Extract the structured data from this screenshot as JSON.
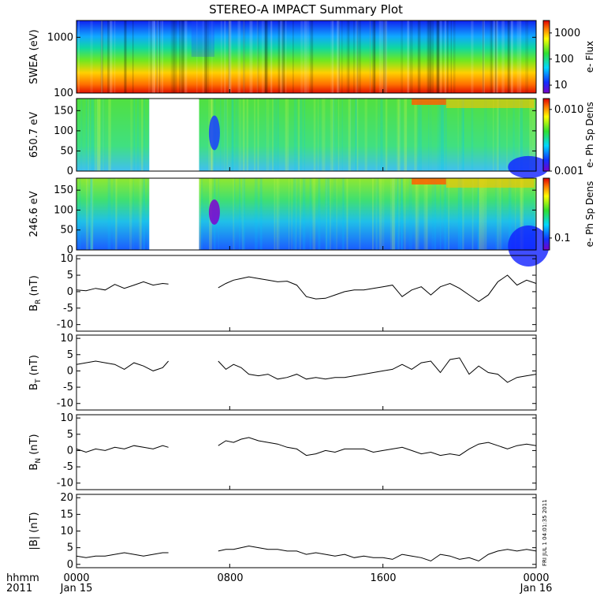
{
  "title": "STEREO-A IMPACT Summary Plot",
  "x_axis": {
    "ticks": [
      "0000",
      "0800",
      "1600",
      "0000"
    ],
    "date_labels": [
      "Jan 15",
      "Jan 16"
    ],
    "corner_top": "hhmm",
    "corner_bottom": "2011"
  },
  "side_note": "FRI JUL 1 04:01:35 2011",
  "colors": {
    "trace": "#000000",
    "gap": "#ffffff",
    "spectrogram_scale": [
      "#7a00c8",
      "#1030ff",
      "#00d8ff",
      "#30e030",
      "#ffff00",
      "#ff8000",
      "#e00000"
    ]
  },
  "chart_data": [
    {
      "id": "swea",
      "type": "heatmap",
      "ylabel": "SWEA (eV)",
      "yscale": "log",
      "ylim": [
        100,
        2000
      ],
      "yticks": [
        "100",
        "1000"
      ],
      "colorbar_label": "e- Flux",
      "colorbar_ticks": [
        "10",
        "100",
        "1000"
      ],
      "colorbar_scale": "log",
      "colorbar_range": [
        5,
        3000
      ],
      "data_gap_hours": []
    },
    {
      "id": "pitch650",
      "type": "heatmap",
      "ylabel": "650.7 eV",
      "ylim": [
        0,
        180
      ],
      "yticks": [
        "0",
        "50",
        "100",
        "150"
      ],
      "colorbar_label": "e- Ph Sp Dens",
      "colorbar_ticks": [
        "0.001",
        "0.010"
      ],
      "colorbar_scale": "log",
      "colorbar_range": [
        0.001,
        0.015
      ],
      "data_gap_hours": [
        3.8,
        6.4
      ]
    },
    {
      "id": "pitch246",
      "type": "heatmap",
      "ylabel": "246.6 eV",
      "ylim": [
        0,
        180
      ],
      "yticks": [
        "0",
        "50",
        "100",
        "150"
      ],
      "colorbar_label": "e- Ph Sp Dens",
      "colorbar_ticks": [
        "0.1"
      ],
      "colorbar_scale": "log",
      "colorbar_range": [
        0.07,
        0.6
      ],
      "data_gap_hours": [
        3.8,
        6.4
      ]
    },
    {
      "id": "br",
      "type": "line",
      "ylabel": "B_R (nT)",
      "ylim": [
        -12,
        11
      ],
      "yticks": [
        "-10",
        "-5",
        "0",
        "5",
        "10"
      ],
      "data_gap_hours": [
        4.8,
        7.4
      ],
      "x_hours": [
        0,
        0.5,
        1,
        1.5,
        2,
        2.5,
        3,
        3.5,
        4,
        4.5,
        4.8,
        7.4,
        7.8,
        8.2,
        8.6,
        9,
        9.5,
        10,
        10.5,
        11,
        11.5,
        12,
        12.5,
        13,
        13.5,
        14,
        14.5,
        15,
        15.5,
        16,
        16.5,
        17,
        17.5,
        18,
        18.5,
        19,
        19.5,
        20,
        20.5,
        21,
        21.5,
        22,
        22.5,
        23,
        23.5,
        24
      ],
      "values": [
        0.5,
        0.3,
        1.0,
        0.5,
        2.2,
        1.0,
        2.0,
        3.0,
        2.0,
        2.5,
        2.3,
        1.2,
        2.5,
        3.5,
        4.0,
        4.5,
        4.0,
        3.5,
        3.0,
        3.2,
        2.0,
        -1.5,
        -2.2,
        -2.0,
        -1.0,
        0.0,
        0.5,
        0.5,
        1.0,
        1.5,
        2.0,
        -1.5,
        0.5,
        1.5,
        -1.0,
        1.5,
        2.5,
        1.0,
        -1.0,
        -3.0,
        -1.0,
        3.0,
        5.0,
        2.0,
        3.5,
        2.5
      ]
    },
    {
      "id": "bt",
      "type": "line",
      "ylabel": "B_T (nT)",
      "ylim": [
        -12,
        11
      ],
      "yticks": [
        "-10",
        "-5",
        "0",
        "5",
        "10"
      ],
      "data_gap_hours": [
        4.8,
        7.4
      ],
      "x_hours": [
        0,
        0.5,
        1,
        1.5,
        2,
        2.5,
        3,
        3.5,
        4,
        4.5,
        4.8,
        7.4,
        7.8,
        8.2,
        8.6,
        9,
        9.5,
        10,
        10.5,
        11,
        11.5,
        12,
        12.5,
        13,
        13.5,
        14,
        14.5,
        15,
        15.5,
        16,
        16.5,
        17,
        17.5,
        18,
        18.5,
        19,
        19.5,
        20,
        20.5,
        21,
        21.5,
        22,
        22.5,
        23,
        23.5,
        24
      ],
      "values": [
        2.0,
        2.5,
        3.0,
        2.5,
        2.0,
        0.5,
        2.5,
        1.5,
        0.0,
        1.0,
        3.0,
        3.0,
        0.5,
        2.0,
        1.0,
        -1.0,
        -1.5,
        -1.0,
        -2.5,
        -2.0,
        -1.0,
        -2.5,
        -2.0,
        -2.5,
        -2.0,
        -2.0,
        -1.5,
        -1.0,
        -0.5,
        0.0,
        0.5,
        2.0,
        0.5,
        2.5,
        3.0,
        -0.5,
        3.5,
        4.0,
        -1.0,
        1.5,
        -0.5,
        -1.0,
        -3.5,
        -2.0,
        -1.5,
        -1.0
      ]
    },
    {
      "id": "bn",
      "type": "line",
      "ylabel": "B_N (nT)",
      "ylim": [
        -12,
        11
      ],
      "yticks": [
        "-10",
        "-5",
        "0",
        "5",
        "10"
      ],
      "data_gap_hours": [
        4.8,
        7.4
      ],
      "x_hours": [
        0,
        0.5,
        1,
        1.5,
        2,
        2.5,
        3,
        3.5,
        4,
        4.5,
        4.8,
        7.4,
        7.8,
        8.2,
        8.6,
        9,
        9.5,
        10,
        10.5,
        11,
        11.5,
        12,
        12.5,
        13,
        13.5,
        14,
        14.5,
        15,
        15.5,
        16,
        16.5,
        17,
        17.5,
        18,
        18.5,
        19,
        19.5,
        20,
        20.5,
        21,
        21.5,
        22,
        22.5,
        23,
        23.5,
        24
      ],
      "values": [
        0.5,
        -0.5,
        0.5,
        0.0,
        1.0,
        0.5,
        1.5,
        1.0,
        0.5,
        1.5,
        1.0,
        1.5,
        3.0,
        2.5,
        3.5,
        4.0,
        3.0,
        2.5,
        2.0,
        1.0,
        0.5,
        -1.5,
        -1.0,
        0.0,
        -0.5,
        0.5,
        0.5,
        0.5,
        -0.5,
        0.0,
        0.5,
        1.0,
        0.0,
        -1.0,
        -0.5,
        -1.5,
        -1.0,
        -1.5,
        0.5,
        2.0,
        2.5,
        1.5,
        0.5,
        1.5,
        2.0,
        1.5
      ]
    },
    {
      "id": "bmag",
      "type": "line",
      "ylabel": "|B| (nT)",
      "ylim": [
        -1,
        21
      ],
      "yticks": [
        "0",
        "5",
        "10",
        "15",
        "20"
      ],
      "data_gap_hours": [
        4.8,
        7.4
      ],
      "x_hours": [
        0,
        0.5,
        1,
        1.5,
        2,
        2.5,
        3,
        3.5,
        4,
        4.5,
        4.8,
        7.4,
        7.8,
        8.2,
        8.6,
        9,
        9.5,
        10,
        10.5,
        11,
        11.5,
        12,
        12.5,
        13,
        13.5,
        14,
        14.5,
        15,
        15.5,
        16,
        16.5,
        17,
        17.5,
        18,
        18.5,
        19,
        19.5,
        20,
        20.5,
        21,
        21.5,
        22,
        22.5,
        23,
        23.5,
        24
      ],
      "values": [
        2.5,
        2.0,
        2.5,
        2.5,
        3.0,
        3.5,
        3.0,
        2.5,
        3.0,
        3.5,
        3.5,
        4.0,
        4.5,
        4.5,
        5.0,
        5.5,
        5.0,
        4.5,
        4.5,
        4.0,
        4.0,
        3.0,
        3.5,
        3.0,
        2.5,
        3.0,
        2.0,
        2.5,
        2.0,
        2.0,
        1.5,
        3.0,
        2.5,
        2.0,
        1.0,
        3.0,
        2.5,
        1.5,
        2.0,
        1.0,
        3.0,
        4.0,
        4.5,
        4.0,
        4.5,
        4.0
      ]
    }
  ]
}
